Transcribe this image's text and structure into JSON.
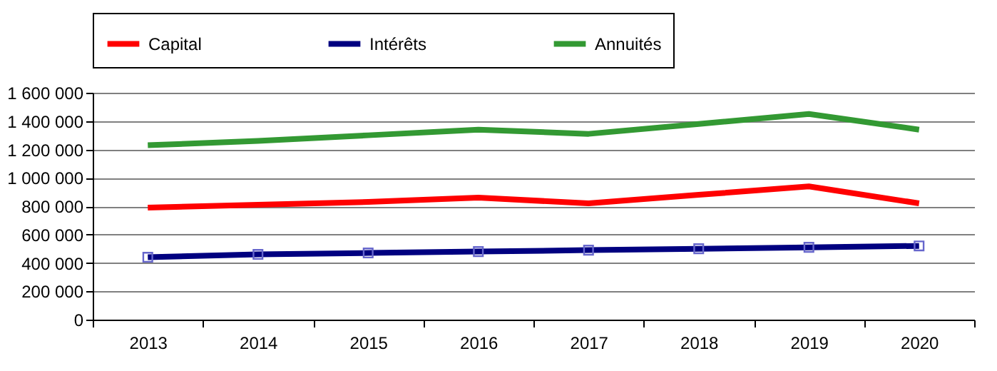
{
  "chart_data": {
    "type": "line",
    "categories": [
      "2013",
      "2014",
      "2015",
      "2016",
      "2017",
      "2018",
      "2019",
      "2020"
    ],
    "series": [
      {
        "name": "Capital",
        "color": "#ff0000",
        "marker": "none",
        "values": [
          790000,
          810000,
          830000,
          860000,
          820000,
          880000,
          940000,
          820000
        ]
      },
      {
        "name": "Intérêts",
        "color": "#000080",
        "marker": "square",
        "values": [
          440000,
          460000,
          470000,
          480000,
          490000,
          500000,
          510000,
          520000
        ]
      },
      {
        "name": "Annuités",
        "color": "#339933",
        "marker": "none",
        "values": [
          1230000,
          1260000,
          1300000,
          1340000,
          1310000,
          1380000,
          1450000,
          1340000
        ]
      }
    ],
    "ylim": [
      0,
      1600000
    ],
    "yticks": [
      {
        "value": 0,
        "label": "0"
      },
      {
        "value": 200000,
        "label": "200 000"
      },
      {
        "value": 400000,
        "label": "400 000"
      },
      {
        "value": 600000,
        "label": "600 000"
      },
      {
        "value": 800000,
        "label": "800 000"
      },
      {
        "value": 1000000,
        "label": "1 000 000"
      },
      {
        "value": 1200000,
        "label": "1 200 000"
      },
      {
        "value": 1400000,
        "label": "1 400 000"
      },
      {
        "value": 1600000,
        "label": "1 600 000"
      }
    ],
    "grid": "y",
    "legend": "top"
  }
}
